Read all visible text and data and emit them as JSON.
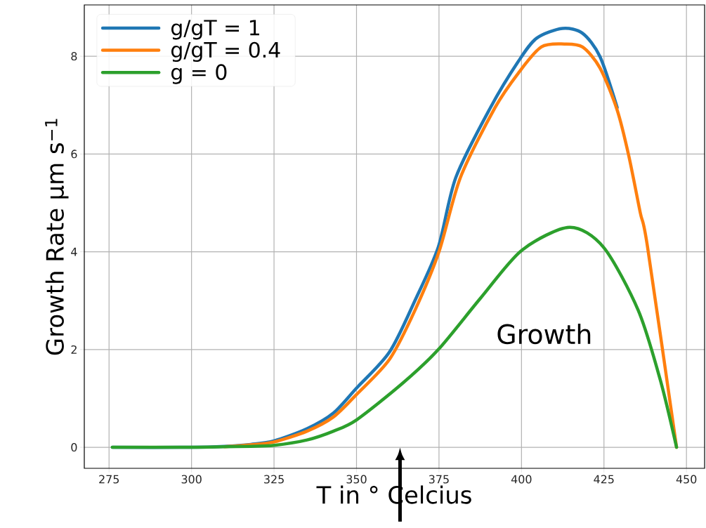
{
  "chart_data": {
    "type": "line",
    "xlabel": "T in ° Celcius",
    "ylabel": "Growth Rate μm s$^{−1}$",
    "xlim": [
      267.5,
      455.5
    ],
    "ylim": [
      -0.43,
      9.05
    ],
    "xticks": [
      275,
      300,
      325,
      350,
      375,
      400,
      425,
      450
    ],
    "yticks": [
      0,
      2,
      4,
      6,
      8
    ],
    "grid": true,
    "legend": "top left",
    "line_style": "solid",
    "marker": "none",
    "annotations": [
      "Growth"
    ],
    "series": [
      {
        "name": "g/gT = 1",
        "color": "#1f77b4",
        "x": [
          276,
          300,
          310,
          318,
          325,
          335,
          343,
          350,
          360,
          367.7,
          374.8,
          380.1,
          390.6,
          399.1,
          404.6,
          412.4,
          418.5,
          423.8,
          429
        ],
        "values": [
          0,
          0,
          0.02,
          0.06,
          0.13,
          0.38,
          0.7,
          1.21,
          1.95,
          3.0,
          4.1,
          5.52,
          6.95,
          7.9,
          8.37,
          8.57,
          8.47,
          7.99,
          6.95
        ]
      },
      {
        "name": "g/gT = 0.4",
        "color": "#ff7f0e",
        "x": [
          310,
          318,
          325,
          335,
          343,
          350,
          360,
          367.7,
          375,
          381.5,
          392,
          399.1,
          406,
          413,
          418.5,
          423.8,
          429,
          432.5,
          436,
          438.2,
          447
        ],
        "values": [
          0.01,
          0.05,
          0.11,
          0.33,
          0.62,
          1.08,
          1.8,
          2.8,
          4.0,
          5.52,
          6.95,
          7.66,
          8.19,
          8.25,
          8.19,
          7.76,
          6.9,
          5.97,
          4.8,
          4.1,
          0
        ]
      },
      {
        "name": "g = 0",
        "color": "#2ca02c",
        "x": [
          276,
          300,
          310,
          318,
          325,
          335,
          343,
          350,
          363.8,
          374.8,
          387.7,
          400.1,
          414.5,
          424.9,
          435.4,
          442.1,
          447
        ],
        "values": [
          0,
          0,
          0.01,
          0.02,
          0.04,
          0.15,
          0.33,
          0.56,
          1.3,
          2.0,
          3.06,
          4.03,
          4.5,
          4.09,
          2.8,
          1.37,
          0
        ]
      }
    ]
  }
}
